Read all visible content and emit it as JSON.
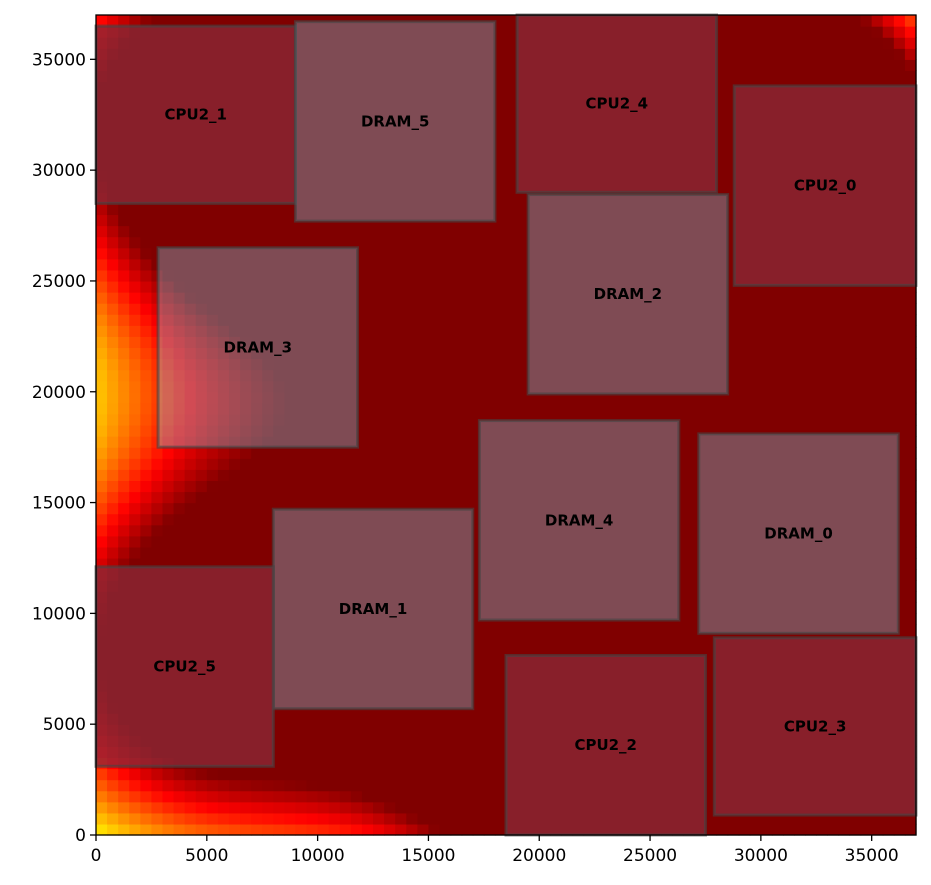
{
  "chart_data": {
    "type": "heatmap",
    "title": "",
    "xlabel": "",
    "ylabel": "",
    "xlim": [
      0,
      37000
    ],
    "ylim": [
      0,
      37000
    ],
    "grid": false,
    "colormap": "jet",
    "x_ticks": [
      0,
      5000,
      10000,
      15000,
      20000,
      25000,
      30000,
      35000
    ],
    "y_ticks": [
      0,
      5000,
      10000,
      15000,
      20000,
      25000,
      30000,
      35000
    ],
    "blocks": [
      {
        "name": "CPU2_1",
        "type": "cpu",
        "x0": 0,
        "y0": 28500,
        "x1": 9000,
        "y1": 36500
      },
      {
        "name": "DRAM_5",
        "type": "dram",
        "x0": 9000,
        "y0": 27700,
        "x1": 18000,
        "y1": 36700
      },
      {
        "name": "CPU2_4",
        "type": "cpu",
        "x0": 19000,
        "y0": 29000,
        "x1": 28000,
        "y1": 37000
      },
      {
        "name": "CPU2_0",
        "type": "cpu",
        "x0": 28800,
        "y0": 24800,
        "x1": 37000,
        "y1": 33800
      },
      {
        "name": "DRAM_2",
        "type": "dram",
        "x0": 19500,
        "y0": 19900,
        "x1": 28500,
        "y1": 28900
      },
      {
        "name": "DRAM_3",
        "type": "dram",
        "x0": 2800,
        "y0": 17500,
        "x1": 11800,
        "y1": 26500
      },
      {
        "name": "DRAM_4",
        "type": "dram",
        "x0": 17300,
        "y0": 9700,
        "x1": 26300,
        "y1": 18700
      },
      {
        "name": "DRAM_0",
        "type": "dram",
        "x0": 27200,
        "y0": 9100,
        "x1": 36200,
        "y1": 18100
      },
      {
        "name": "DRAM_1",
        "type": "dram",
        "x0": 8000,
        "y0": 5700,
        "x1": 17000,
        "y1": 14700
      },
      {
        "name": "CPU2_5",
        "type": "cpu",
        "x0": 0,
        "y0": 3100,
        "x1": 8000,
        "y1": 12100
      },
      {
        "name": "CPU2_2",
        "type": "cpu",
        "x0": 18500,
        "y0": 0,
        "x1": 27500,
        "y1": 8100
      },
      {
        "name": "CPU2_3",
        "type": "cpu",
        "x0": 27900,
        "y0": 900,
        "x1": 37000,
        "y1": 8900
      }
    ],
    "hotspots": [
      {
        "x": 4500,
        "y": 32500,
        "intensity": 1.0,
        "spread": 7500
      },
      {
        "x": 23500,
        "y": 33000,
        "intensity": 1.0,
        "spread": 7500
      },
      {
        "x": 32800,
        "y": 29200,
        "intensity": 1.0,
        "spread": 7500
      },
      {
        "x": 4000,
        "y": 7600,
        "intensity": 1.0,
        "spread": 7500
      },
      {
        "x": 23000,
        "y": 4000,
        "intensity": 1.0,
        "spread": 7500
      },
      {
        "x": 32400,
        "y": 4800,
        "intensity": 1.0,
        "spread": 7500
      },
      {
        "x": 13500,
        "y": 32200,
        "intensity": 0.3,
        "spread": 9000
      },
      {
        "x": 24000,
        "y": 24400,
        "intensity": 0.4,
        "spread": 9000
      },
      {
        "x": 21800,
        "y": 14200,
        "intensity": 0.38,
        "spread": 9000
      },
      {
        "x": 31700,
        "y": 13600,
        "intensity": 0.42,
        "spread": 9000
      },
      {
        "x": 12500,
        "y": 10200,
        "intensity": 0.2,
        "spread": 8000
      },
      {
        "x": 7300,
        "y": 22000,
        "intensity": 0.14,
        "spread": 8000
      }
    ],
    "colors": {
      "cpu_overlay": "#8b2b3a",
      "dram_overlay": "#7fd6f0",
      "block_border": "#444444",
      "axis": "#000000"
    }
  }
}
